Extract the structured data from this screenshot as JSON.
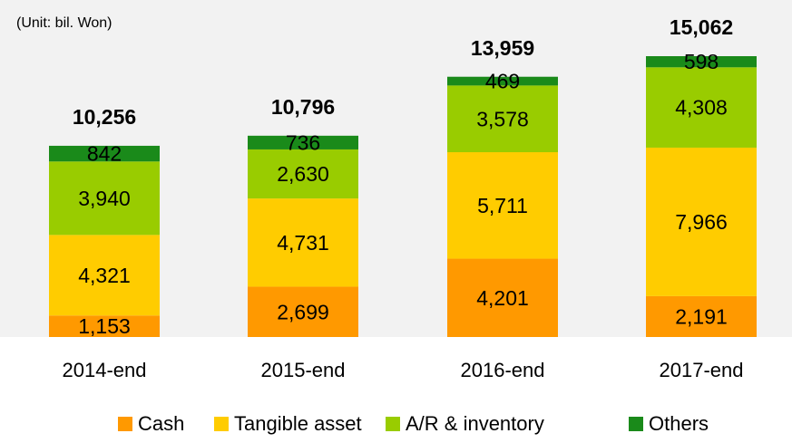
{
  "chart_data": {
    "type": "bar",
    "stacked": true,
    "subtitle": "(Unit: bil. Won)",
    "categories": [
      "2014-end",
      "2015-end",
      "2016-end",
      "2017-end"
    ],
    "series": [
      {
        "name": "Cash",
        "color": "#ff9900",
        "values": [
          1153,
          2699,
          4201,
          2191
        ],
        "value_labels": [
          "1,153",
          "2,699",
          "4,201",
          "2,191"
        ]
      },
      {
        "name": "Tangible asset",
        "color": "#ffcc00",
        "values": [
          4321,
          4731,
          5711,
          7966
        ],
        "value_labels": [
          "4,321",
          "4,731",
          "5,711",
          "7,966"
        ]
      },
      {
        "name": "A/R & inventory",
        "color": "#99cc00",
        "values": [
          3940,
          2630,
          3578,
          4308
        ],
        "value_labels": [
          "3,940",
          "2,630",
          "3,578",
          "4,308"
        ]
      },
      {
        "name": "Others",
        "color": "#1a8a1a",
        "values": [
          842,
          736,
          469,
          598
        ],
        "value_labels": [
          "842",
          "736",
          "469",
          "598"
        ]
      }
    ],
    "totals": [
      10256,
      10796,
      13959,
      15062
    ],
    "total_labels": [
      "10,256",
      "10,796",
      "13,959",
      "15,062"
    ],
    "legend": "bottom"
  }
}
